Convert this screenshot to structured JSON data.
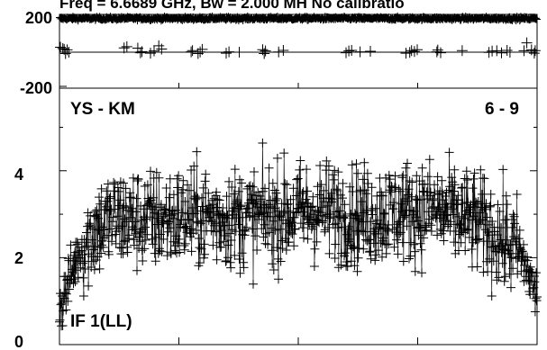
{
  "chart_data": [
    {
      "type": "scatter",
      "title": "Freq = 6.6689 GHz, Bw = 2.000 MH   No calibratio",
      "panel": "phase",
      "ylim": [
        -200,
        200
      ],
      "ytick_labels": [
        "200",
        "-200"
      ],
      "xlabel": "",
      "ylabel": "",
      "grid": false,
      "point_count": 1024,
      "series": [
        {
          "marker": "plus",
          "color": "#000000",
          "main_band": {
            "center": 178,
            "spread": 10
          },
          "outliers": [
            [
              0.5,
              22
            ],
            [
              1.8,
              15
            ],
            [
              2.5,
              10
            ],
            [
              3.2,
              -12
            ],
            [
              4.1,
              8
            ],
            [
              5.0,
              -5
            ],
            [
              34.5,
              18
            ],
            [
              36.0,
              25
            ],
            [
              41.8,
              17
            ],
            [
              43.2,
              -8
            ],
            [
              44.0,
              -2
            ],
            [
              48.6,
              -10
            ],
            [
              50.5,
              2
            ],
            [
              53.0,
              30
            ],
            [
              54.5,
              12
            ],
            [
              70.3,
              -3
            ],
            [
              71.0,
              4
            ],
            [
              74.0,
              -12
            ],
            [
              75.1,
              -4
            ],
            [
              76.2,
              10
            ],
            [
              89.0,
              -10
            ],
            [
              90.5,
              -3
            ],
            [
              96.0,
              -5
            ],
            [
              108.5,
              9
            ],
            [
              109.3,
              -12
            ],
            [
              110.0,
              2
            ],
            [
              117.0,
              -4
            ],
            [
              119.5,
              5
            ],
            [
              153.0,
              -8
            ],
            [
              154.5,
              2
            ],
            [
              156.0,
              5
            ],
            [
              160.5,
              -3
            ],
            [
              166.0,
              0
            ],
            [
              185.0,
              -10
            ],
            [
              187.0,
              -6
            ],
            [
              188.0,
              4
            ],
            [
              189.5,
              -1
            ],
            [
              191.0,
              9
            ],
            [
              201.5,
              -3
            ],
            [
              202.0,
              7
            ],
            [
              203.5,
              -8
            ],
            [
              215.0,
              4
            ],
            [
              229.3,
              -6
            ],
            [
              231.0,
              1
            ],
            [
              233.5,
              3
            ],
            [
              236.0,
              -9
            ],
            [
              239.0,
              5
            ],
            [
              240.5,
              -5
            ],
            [
              248.0,
              3
            ],
            [
              249.5,
              46
            ],
            [
              252.0,
              8
            ],
            [
              253.5,
              -10
            ],
            [
              254.0,
              4
            ]
          ]
        }
      ]
    },
    {
      "type": "scatter",
      "panel": "amplitude",
      "xlim": [
        0,
        255
      ],
      "ylim": [
        0,
        5.9
      ],
      "ytick_labels": [
        "0",
        "2",
        "4"
      ],
      "xlabel": "",
      "ylabel": "",
      "grid": false,
      "baseline_label": "YS - KM",
      "time_label": "6 - 9",
      "if_label": "IF 1(LL)",
      "point_count": 1024,
      "series": [
        {
          "marker": "plus",
          "color": "#000000",
          "envelope": [
            [
              0,
              0.8
            ],
            [
              10,
              2.1
            ],
            [
              20,
              2.7
            ],
            [
              30,
              2.9
            ],
            [
              45,
              2.85
            ],
            [
              60,
              2.9
            ],
            [
              80,
              2.95
            ],
            [
              100,
              2.9
            ],
            [
              120,
              3.0
            ],
            [
              140,
              3.1
            ],
            [
              160,
              2.95
            ],
            [
              180,
              3.05
            ],
            [
              200,
              3.1
            ],
            [
              215,
              2.9
            ],
            [
              225,
              2.75
            ],
            [
              235,
              2.45
            ],
            [
              245,
              2.15
            ],
            [
              250,
              1.7
            ],
            [
              255,
              1.1
            ]
          ],
          "spread": 1.15,
          "ymax": 5.6
        }
      ]
    }
  ]
}
